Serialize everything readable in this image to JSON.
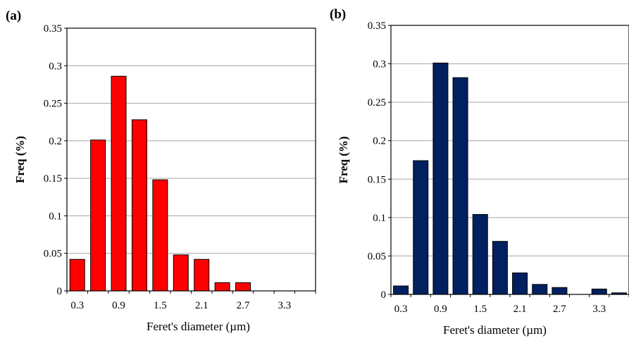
{
  "chart_data": [
    {
      "type": "bar",
      "panel_label": "(a)",
      "ylabel": "Freq (%)",
      "xlabel": "Feret's diameter (µm)",
      "x_tick_labels": [
        "0.3",
        "0.9",
        "1.5",
        "2.1",
        "2.7",
        "3.3"
      ],
      "y_tick_labels": [
        "0",
        "0.05",
        "0.1",
        "0.15",
        "0.2",
        "0.25",
        "0.3",
        "0.35"
      ],
      "ylim": [
        0,
        0.35
      ],
      "grid": true,
      "color": "#ff0000",
      "x": [
        0.3,
        0.6,
        0.9,
        1.2,
        1.5,
        1.8,
        2.1,
        2.4,
        2.7,
        3.0,
        3.3,
        3.6
      ],
      "values": [
        0.042,
        0.201,
        0.286,
        0.228,
        0.148,
        0.048,
        0.042,
        0.011,
        0.011,
        0.0,
        0.0,
        0.0
      ]
    },
    {
      "type": "bar",
      "panel_label": "(b)",
      "ylabel": "Freq (%)",
      "xlabel": "Feret's diameter (µm)",
      "x_tick_labels": [
        "0.3",
        "0.9",
        "1.5",
        "2.1",
        "2.7",
        "3.3"
      ],
      "y_tick_labels": [
        "0",
        "0.05",
        "0.1",
        "0.15",
        "0.2",
        "0.25",
        "0.3",
        "0.35"
      ],
      "ylim": [
        0,
        0.35
      ],
      "grid": true,
      "color": "#002060",
      "x": [
        0.3,
        0.6,
        0.9,
        1.2,
        1.5,
        1.8,
        2.1,
        2.4,
        2.7,
        3.0,
        3.3,
        3.6
      ],
      "values": [
        0.011,
        0.174,
        0.301,
        0.282,
        0.104,
        0.069,
        0.028,
        0.013,
        0.009,
        0.0,
        0.007,
        0.002
      ]
    }
  ]
}
